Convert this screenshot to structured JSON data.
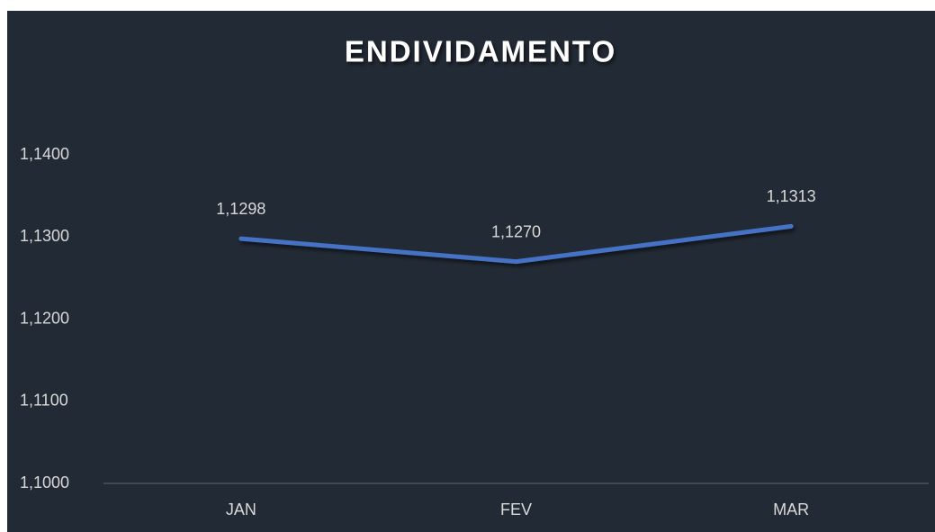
{
  "chart_data": {
    "type": "line",
    "title": "ENDIVIDAMENTO",
    "categories": [
      "JAN",
      "FEV",
      "MAR"
    ],
    "values": [
      1.1298,
      1.127,
      1.1313
    ],
    "value_labels": [
      "1,1298",
      "1,1270",
      "1,1313"
    ],
    "color": "#4472c4",
    "ylim": [
      1.1,
      1.14
    ],
    "yticks": [
      {
        "value": 1.1,
        "label": "1,1000"
      },
      {
        "value": 1.11,
        "label": "1,1100"
      },
      {
        "value": 1.12,
        "label": "1,1200"
      },
      {
        "value": 1.13,
        "label": "1,1300"
      },
      {
        "value": 1.14,
        "label": "1,1400"
      }
    ],
    "grid": false
  }
}
